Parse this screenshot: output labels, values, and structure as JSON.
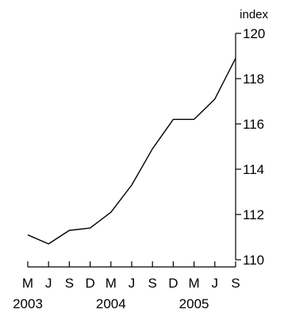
{
  "chart_data": {
    "type": "line",
    "ylabel": "index",
    "ylim": [
      110,
      120
    ],
    "yticks": [
      110,
      112,
      114,
      116,
      118,
      120
    ],
    "x_tick_labels": [
      "M",
      "J",
      "S",
      "D",
      "M",
      "J",
      "S",
      "D",
      "M",
      "J",
      "S"
    ],
    "year_labels": [
      {
        "label": "2003",
        "at_index": 0
      },
      {
        "label": "2004",
        "at_index": 4
      },
      {
        "label": "2005",
        "at_index": 8
      }
    ],
    "series": [
      {
        "values": [
          111.1,
          110.7,
          111.3,
          111.4,
          112.1,
          113.3,
          114.9,
          116.2,
          116.2,
          117.1,
          118.9
        ]
      }
    ]
  }
}
